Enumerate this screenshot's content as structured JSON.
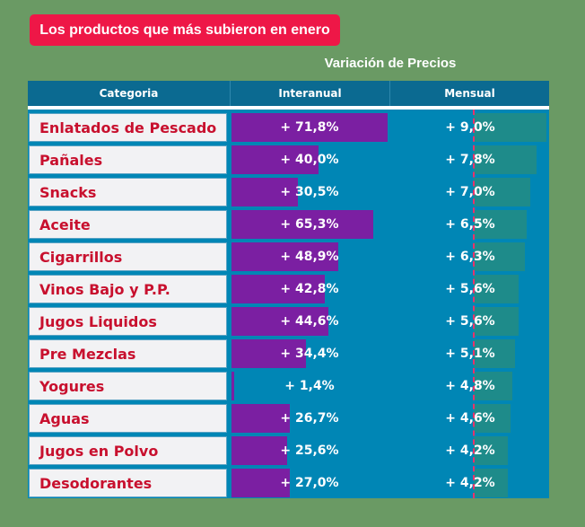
{
  "title": "Los productos que más subieron en enero",
  "subtitle": "Variación de Precios",
  "columns": [
    "Categoria",
    "Interanual",
    "Mensual"
  ],
  "colors": {
    "background": "#6a9a64",
    "title_pill": "#ee1747",
    "header": "#0b6a91",
    "table_bg": "#0086b5",
    "interanual_bar": "#7b1fa2",
    "mensual_bar": "#1e8b8a",
    "category_text": "#c8102e"
  },
  "chart_data": {
    "type": "table",
    "title": "Los productos que más subieron en enero",
    "subtitle": "Variación de Precios",
    "categories": [
      "Enlatados de Pescado",
      "Pañales",
      "Snacks",
      "Aceite",
      "Cigarrillos",
      "Vinos Bajo y P.P.",
      "Jugos Liquidos",
      "Pre Mezclas",
      "Yogures",
      "Aguas",
      "Jugos en Polvo",
      "Desodorantes"
    ],
    "series": [
      {
        "name": "Interanual",
        "values": [
          71.8,
          40.0,
          30.5,
          65.3,
          48.9,
          42.8,
          44.6,
          34.4,
          1.4,
          26.7,
          25.6,
          27.0
        ],
        "labels": [
          "+ 71,8%",
          "+ 40,0%",
          "+ 30,5%",
          "+ 65,3%",
          "+ 48,9%",
          "+ 42,8%",
          "+ 44,6%",
          "+ 34,4%",
          "+ 1,4%",
          "+ 26,7%",
          "+ 25,6%",
          "+ 27,0%"
        ]
      },
      {
        "name": "Mensual",
        "values": [
          9.0,
          7.8,
          7.0,
          6.5,
          6.3,
          5.6,
          5.6,
          5.1,
          4.8,
          4.6,
          4.2,
          4.2
        ],
        "labels": [
          "+ 9,0%",
          "+ 7,8%",
          "+ 7,0%",
          "+ 6,5%",
          "+ 6,3%",
          "+ 5,6%",
          "+ 5,6%",
          "+ 5,1%",
          "+ 4,8%",
          "+ 4,6%",
          "+ 4,2%",
          "+ 4,2%"
        ]
      }
    ]
  }
}
